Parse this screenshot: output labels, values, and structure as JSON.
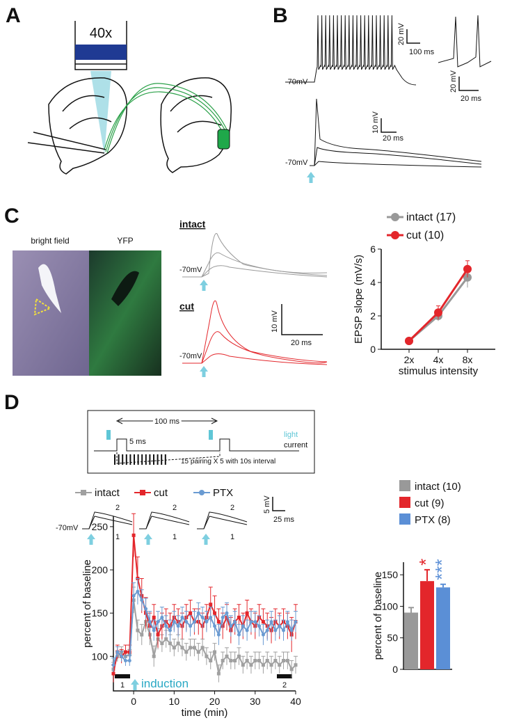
{
  "panels": {
    "A": {
      "label": "A",
      "objective": "40x"
    },
    "B": {
      "label": "B",
      "scale1_v": "20 mV",
      "scale1_t": "100 ms",
      "scale2_v": "20 mV",
      "scale2_t": "20 ms",
      "rest1": "-70mV",
      "scale3_v": "10 mV",
      "scale3_t": "20 ms",
      "rest2": "-70mV"
    },
    "C": {
      "label": "C",
      "bright_field": "bright field",
      "yfp": "YFP",
      "intact": "intact",
      "rest1": "-70mV",
      "cut": "cut",
      "rest2": "-70mV",
      "scale_v": "10 mV",
      "scale_t": "20 ms"
    },
    "D": {
      "label": "D",
      "interval": "100 ms",
      "pulse": "5 ms",
      "light": "light",
      "current": "current",
      "protocol": "15 pairing X 5 with 10s interval",
      "rest": "-70mV",
      "trace_labels": [
        "2",
        "1",
        "2",
        "1",
        "2",
        "1"
      ],
      "scale_v": "5 mV",
      "scale_t": "25 ms",
      "induction": "induction",
      "window1": "1",
      "window2": "2"
    }
  },
  "chart_data": [
    {
      "type": "line",
      "ylabel": "EPSP slope (mV/s)",
      "xlabel": "stimulus intensity",
      "categories": [
        "2x",
        "4x",
        "8x"
      ],
      "ylim": [
        0,
        6
      ],
      "yticks": [
        0,
        2,
        4,
        6
      ],
      "series": [
        {
          "name": "intact (17)",
          "color": "#999999",
          "values": [
            0.5,
            2.0,
            4.3
          ],
          "error": [
            0.1,
            0.3,
            0.6
          ],
          "marker": "circle"
        },
        {
          "name": "cut (10)",
          "color": "#e3262b",
          "values": [
            0.5,
            2.2,
            4.8
          ],
          "error": [
            0.1,
            0.4,
            0.5
          ],
          "marker": "circle"
        }
      ]
    },
    {
      "type": "line",
      "ylabel": "percent of baseline",
      "xlabel": "time (min)",
      "xlim": [
        -5,
        40
      ],
      "xticks": [
        0,
        10,
        20,
        30,
        40
      ],
      "ylim": [
        60,
        262
      ],
      "yticks": [
        100,
        150,
        200,
        250
      ],
      "x": [
        -5,
        -4,
        -3,
        -2,
        -1,
        0,
        1,
        2,
        3,
        4,
        5,
        6,
        7,
        8,
        9,
        10,
        11,
        12,
        13,
        14,
        15,
        16,
        17,
        18,
        19,
        20,
        21,
        22,
        23,
        24,
        25,
        26,
        27,
        28,
        29,
        30,
        31,
        32,
        33,
        34,
        35,
        36,
        37,
        38,
        39,
        40
      ],
      "series": [
        {
          "name": "intact",
          "color": "#a0a0a0",
          "marker": "square",
          "values": [
            85,
            100,
            105,
            100,
            102,
            165,
            130,
            125,
            140,
            125,
            100,
            120,
            115,
            120,
            115,
            110,
            115,
            110,
            105,
            110,
            110,
            105,
            110,
            100,
            95,
            105,
            80,
            95,
            100,
            95,
            95,
            100,
            90,
            95,
            90,
            95,
            95,
            90,
            95,
            90,
            95,
            90,
            95,
            95,
            85,
            90
          ],
          "error": [
            8,
            6,
            6,
            6,
            6,
            15,
            12,
            12,
            12,
            12,
            12,
            12,
            10,
            10,
            10,
            10,
            10,
            10,
            10,
            10,
            10,
            10,
            10,
            10,
            10,
            10,
            10,
            10,
            10,
            10,
            10,
            10,
            10,
            10,
            10,
            10,
            10,
            10,
            10,
            10,
            10,
            10,
            10,
            10,
            10,
            10
          ]
        },
        {
          "name": "cut",
          "color": "#e3262b",
          "marker": "square",
          "values": [
            80,
            105,
            100,
            105,
            105,
            240,
            190,
            170,
            150,
            135,
            145,
            125,
            135,
            140,
            135,
            145,
            140,
            135,
            145,
            150,
            140,
            140,
            135,
            145,
            160,
            150,
            140,
            135,
            145,
            130,
            140,
            145,
            135,
            150,
            140,
            135,
            145,
            140,
            135,
            130,
            140,
            135,
            140,
            135,
            125,
            140
          ],
          "error": [
            10,
            8,
            8,
            8,
            8,
            25,
            25,
            20,
            18,
            15,
            15,
            15,
            15,
            15,
            15,
            15,
            15,
            15,
            15,
            15,
            15,
            15,
            15,
            15,
            20,
            20,
            15,
            15,
            15,
            15,
            15,
            15,
            15,
            15,
            15,
            15,
            15,
            15,
            15,
            15,
            15,
            15,
            15,
            15,
            20,
            20
          ]
        },
        {
          "name": "PTX",
          "color": "#6a9bd2",
          "marker": "circle",
          "values": [
            90,
            105,
            100,
            95,
            95,
            170,
            175,
            165,
            155,
            140,
            130,
            140,
            145,
            135,
            130,
            140,
            135,
            145,
            140,
            135,
            140,
            150,
            145,
            140,
            145,
            135,
            125,
            145,
            150,
            135,
            140,
            125,
            135,
            130,
            140,
            140,
            135,
            125,
            130,
            140,
            130,
            135,
            130,
            140,
            130,
            140
          ],
          "error": [
            8,
            6,
            6,
            6,
            6,
            15,
            15,
            12,
            12,
            12,
            12,
            12,
            12,
            12,
            12,
            12,
            12,
            12,
            12,
            12,
            12,
            12,
            12,
            12,
            12,
            12,
            12,
            12,
            12,
            12,
            12,
            12,
            12,
            12,
            12,
            12,
            12,
            12,
            12,
            12,
            12,
            12,
            12,
            12,
            12,
            12
          ]
        }
      ]
    },
    {
      "type": "bar",
      "ylabel": "percent of baseline",
      "ylim": [
        0,
        170
      ],
      "yticks": [
        0,
        50,
        100,
        150
      ],
      "series": [
        {
          "name": "intact (10)",
          "color": "#999999",
          "values": [
            90
          ],
          "error": [
            8
          ]
        },
        {
          "name": "cut (9)",
          "color": "#e3262b",
          "values": [
            140
          ],
          "error": [
            18
          ],
          "annotation": "*"
        },
        {
          "name": "PTX (8)",
          "color": "#5b8fd6",
          "values": [
            130
          ],
          "error": [
            5
          ],
          "annotation": "***"
        }
      ]
    }
  ]
}
